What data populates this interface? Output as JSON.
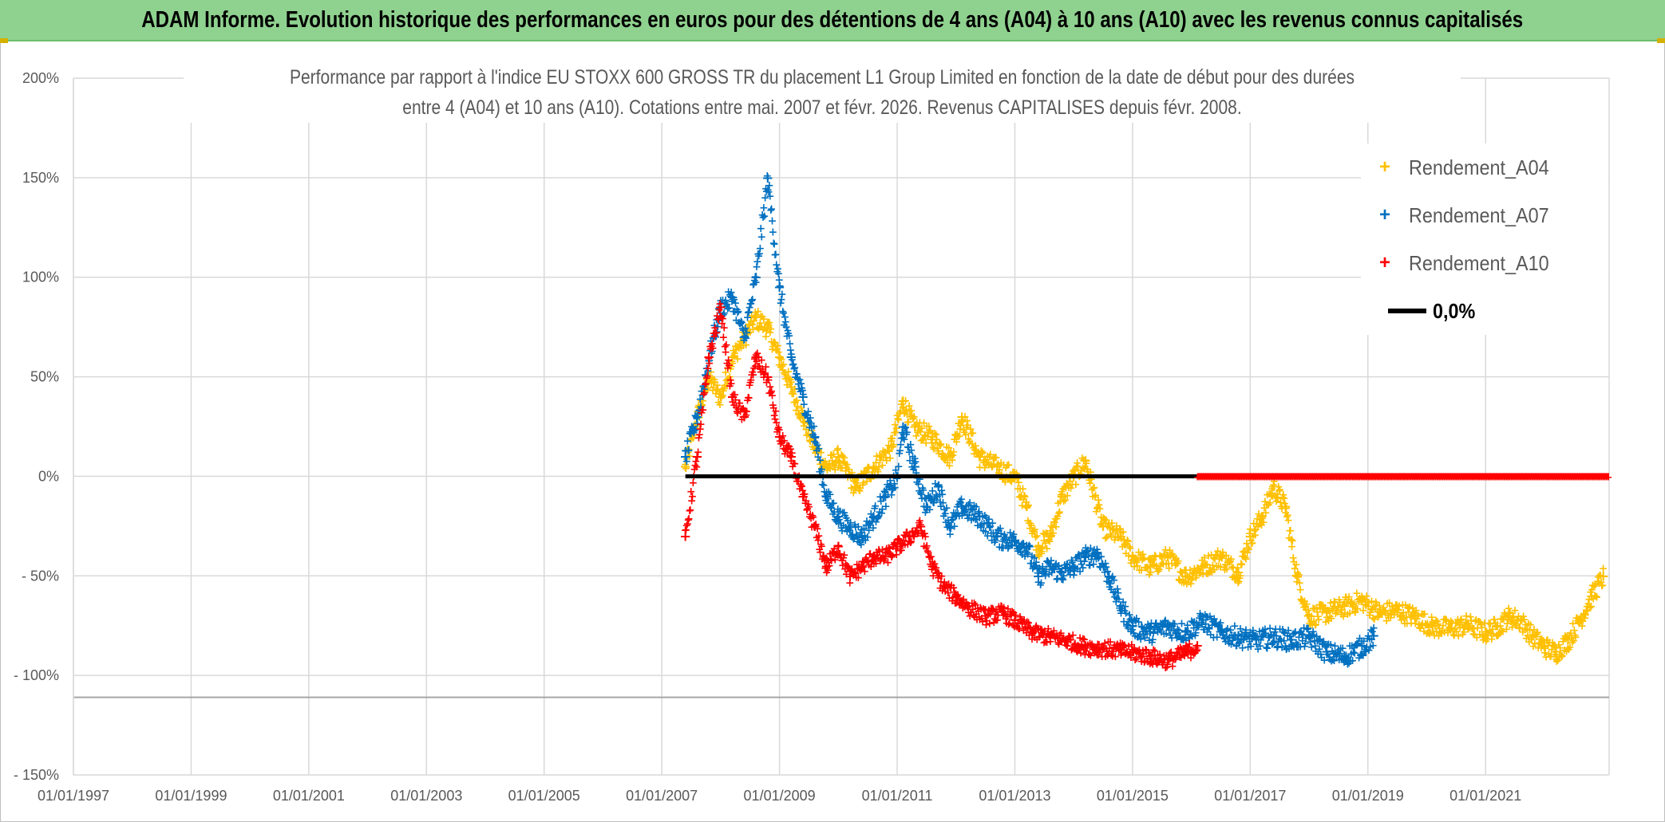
{
  "banner": {
    "title": "ADAM Informe. Evolution historique des performances en euros pour des détentions de 4 ans (A04) à 10 ans (A10) avec les revenus connus capitalisés"
  },
  "colors": {
    "banner_bg": "#8fd18f",
    "A04": "#ffc000",
    "A07": "#0070c0",
    "A10": "#ff0000",
    "zero": "#000000"
  },
  "chart_data": {
    "type": "scatter",
    "title_line1": "Performance par rapport à l'indice EU STOXX 600 GROSS TR  du placement L1 Group Limited en fonction de la date de début pour des durées",
    "title_line2": "entre 4 (A04) et 10 ans (A10). Cotations entre mai. 2007 et févr. 2026. Revenus CAPITALISES depuis févr. 2008.",
    "y_ticks": [
      "200%",
      "150%",
      "100%",
      "50%",
      "0%",
      "- 50%",
      "- 100%",
      "- 150%"
    ],
    "y_tick_values": [
      200,
      150,
      100,
      50,
      0,
      -50,
      -100,
      -150
    ],
    "x_ticks": [
      "01/01/1997",
      "01/01/1999",
      "01/01/2001",
      "01/01/2003",
      "01/01/2005",
      "01/01/2007",
      "01/01/2009",
      "01/01/2011",
      "01/01/2013",
      "01/01/2015",
      "01/01/2017",
      "01/01/2019",
      "01/01/2021"
    ],
    "x_tick_years": [
      1997,
      1999,
      2001,
      2003,
      2005,
      2007,
      2009,
      2011,
      2013,
      2015,
      2017,
      2019,
      2021
    ],
    "xlim": [
      1997,
      2023.1
    ],
    "ylim": [
      -150,
      200
    ],
    "series": [
      {
        "name": "Rendement_A04",
        "color": "#ffc000",
        "x": [
          2007.4,
          2007.6,
          2007.8,
          2008.0,
          2008.2,
          2008.4,
          2008.6,
          2008.8,
          2009.0,
          2009.2,
          2009.4,
          2009.6,
          2009.8,
          2010.0,
          2010.3,
          2010.6,
          2010.9,
          2011.1,
          2011.3,
          2011.6,
          2011.9,
          2012.1,
          2012.4,
          2012.7,
          2013.0,
          2013.2,
          2013.4,
          2013.6,
          2013.8,
          2014.0,
          2014.2,
          2014.5,
          2014.8,
          2015.0,
          2015.3,
          2015.6,
          2015.9,
          2016.2,
          2016.5,
          2016.8,
          2017.0,
          2017.2,
          2017.4,
          2017.6,
          2017.8,
          2018.0,
          2018.3,
          2018.6,
          2018.9,
          2019.2,
          2019.5,
          2019.8,
          2020.1,
          2020.4,
          2020.7,
          2021.0,
          2021.2,
          2021.4,
          2021.6,
          2021.8,
          2022.0,
          2022.2,
          2022.4,
          2022.6,
          2022.8,
          2023.0
        ],
        "y": [
          5,
          30,
          50,
          40,
          60,
          70,
          80,
          75,
          60,
          45,
          30,
          15,
          5,
          10,
          -5,
          5,
          15,
          38,
          25,
          20,
          10,
          30,
          10,
          5,
          0,
          -15,
          -35,
          -30,
          -10,
          0,
          8,
          -25,
          -30,
          -40,
          -45,
          -40,
          -50,
          -45,
          -40,
          -48,
          -30,
          -20,
          -5,
          -15,
          -50,
          -70,
          -68,
          -65,
          -62,
          -68,
          -67,
          -70,
          -75,
          -76,
          -74,
          -78,
          -75,
          -70,
          -72,
          -80,
          -85,
          -88,
          -82,
          -72,
          -60,
          -50
        ]
      },
      {
        "name": "Rendement_A07",
        "color": "#0070c0",
        "x": [
          2007.4,
          2007.6,
          2007.8,
          2008.0,
          2008.2,
          2008.4,
          2008.6,
          2008.8,
          2009.0,
          2009.2,
          2009.4,
          2009.6,
          2009.8,
          2010.0,
          2010.2,
          2010.4,
          2010.6,
          2010.8,
          2011.0,
          2011.1,
          2011.3,
          2011.5,
          2011.7,
          2011.9,
          2012.1,
          2012.4,
          2012.7,
          2013.0,
          2013.2,
          2013.4,
          2013.6,
          2013.8,
          2014.0,
          2014.2,
          2014.4,
          2014.6,
          2014.8,
          2015.0,
          2015.3,
          2015.6,
          2015.9,
          2016.2,
          2016.5,
          2016.8,
          2017.1,
          2017.4,
          2017.7,
          2018.0,
          2018.3,
          2018.6,
          2018.9,
          2019.1
        ],
        "y": [
          10,
          30,
          60,
          85,
          90,
          70,
          100,
          150,
          95,
          60,
          40,
          20,
          -10,
          -20,
          -25,
          -30,
          -20,
          -10,
          0,
          25,
          5,
          -15,
          -5,
          -25,
          -15,
          -20,
          -30,
          -32,
          -35,
          -50,
          -45,
          -48,
          -45,
          -40,
          -38,
          -50,
          -65,
          -75,
          -78,
          -75,
          -78,
          -72,
          -78,
          -80,
          -82,
          -80,
          -82,
          -80,
          -88,
          -90,
          -85,
          -80
        ]
      },
      {
        "name": "Rendement_A10",
        "color": "#ff0000",
        "x": [
          2007.4,
          2007.6,
          2007.8,
          2008.0,
          2008.2,
          2008.4,
          2008.6,
          2008.8,
          2009.0,
          2009.2,
          2009.4,
          2009.6,
          2009.8,
          2010.0,
          2010.2,
          2010.4,
          2010.6,
          2010.8,
          2011.0,
          2011.2,
          2011.4,
          2011.6,
          2011.8,
          2012.0,
          2012.2,
          2012.5,
          2012.8,
          2013.0,
          2013.3,
          2013.6,
          2013.9,
          2014.2,
          2014.5,
          2014.8,
          2015.0,
          2015.3,
          2015.6,
          2015.9,
          2016.1
        ],
        "y": [
          -30,
          10,
          60,
          85,
          40,
          30,
          60,
          50,
          20,
          10,
          -10,
          -25,
          -45,
          -35,
          -50,
          -45,
          -40,
          -40,
          -35,
          -30,
          -25,
          -45,
          -55,
          -60,
          -65,
          -70,
          -68,
          -72,
          -78,
          -80,
          -82,
          -85,
          -86,
          -87,
          -88,
          -90,
          -92,
          -88,
          -85
        ]
      },
      {
        "name": "0,0%",
        "color": "#000000",
        "x": [
          2007.4,
          2016.1
        ],
        "y": [
          0,
          0
        ]
      }
    ],
    "a10_zero_tail": {
      "x_start": 2016.1,
      "x_end": 2023.1,
      "y": 0
    },
    "legend": [
      "Rendement_A04",
      "Rendement_A07",
      "Rendement_A10",
      "0,0%"
    ],
    "legend_position": "top-right"
  }
}
